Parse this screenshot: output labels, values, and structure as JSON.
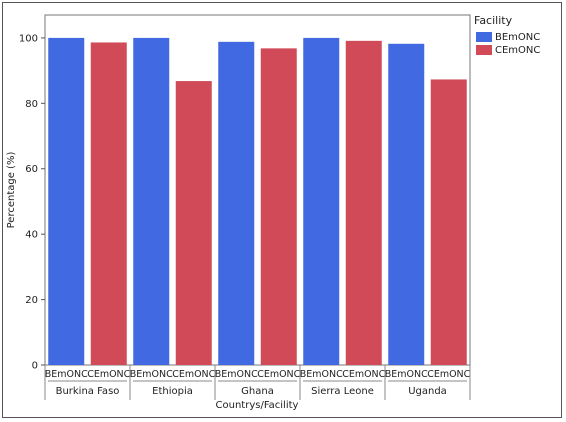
{
  "chart_data": {
    "type": "bar",
    "title": "",
    "ylabel": "Percentage (%)",
    "xlabel": "Countrys/Facility",
    "ylim": [
      0,
      107
    ],
    "yticks": [
      0,
      20,
      40,
      60,
      80,
      100
    ],
    "grid": false,
    "legend": {
      "title": "Facility",
      "placement": "top-right"
    },
    "facility_labels": [
      "BEmONC",
      "CEmONC"
    ],
    "categories": [
      "Burkina Faso",
      "Ethiopia",
      "Ghana",
      "Sierra Leone",
      "Uganda"
    ],
    "series": [
      {
        "name": "BEmONC",
        "color": "#4169e1",
        "values": [
          100,
          100,
          98.8,
          100,
          98.2
        ]
      },
      {
        "name": "CEmONC",
        "color": "#d04a57",
        "values": [
          98.6,
          86.8,
          96.8,
          99.1,
          87.3
        ]
      }
    ]
  }
}
